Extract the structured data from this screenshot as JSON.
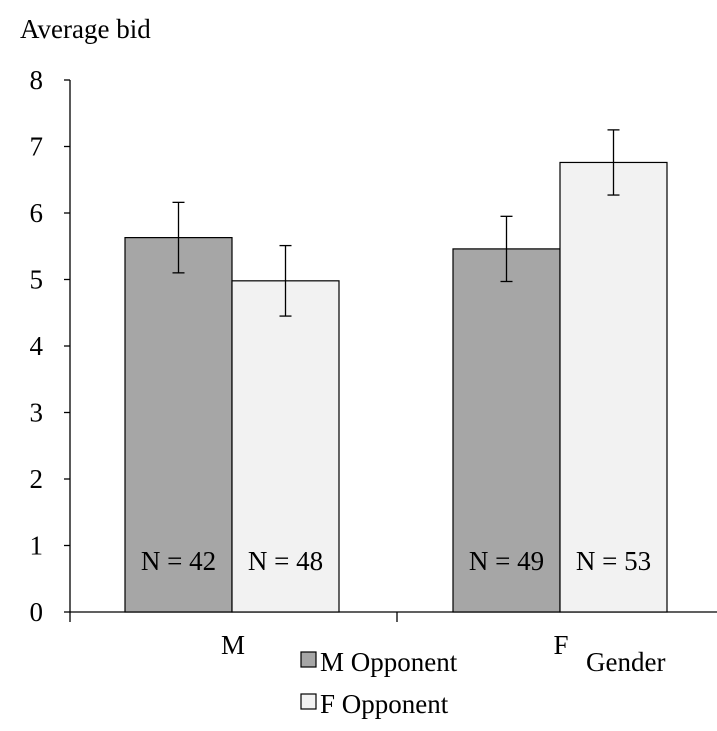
{
  "chart_data": {
    "type": "bar",
    "title": "",
    "ylabel": "Average bid",
    "xlabel": "Gender",
    "ylim": [
      0,
      8
    ],
    "yticks": [
      "0",
      "1",
      "2",
      "3",
      "4",
      "5",
      "6",
      "7",
      "8"
    ],
    "categories": [
      "M",
      "F"
    ],
    "series": [
      {
        "name": "M Opponent",
        "color": "#a6a6a6",
        "values": [
          5.63,
          5.46
        ],
        "errors": [
          0.53,
          0.49
        ],
        "n_labels": [
          "N = 42",
          "N = 49"
        ]
      },
      {
        "name": "F Opponent",
        "color": "#f2f2f2",
        "values": [
          4.98,
          6.76
        ],
        "errors": [
          0.53,
          0.49
        ],
        "n_labels": [
          "N = 48",
          "N = 53"
        ]
      }
    ],
    "legend": "bottom-center",
    "grid": false
  }
}
